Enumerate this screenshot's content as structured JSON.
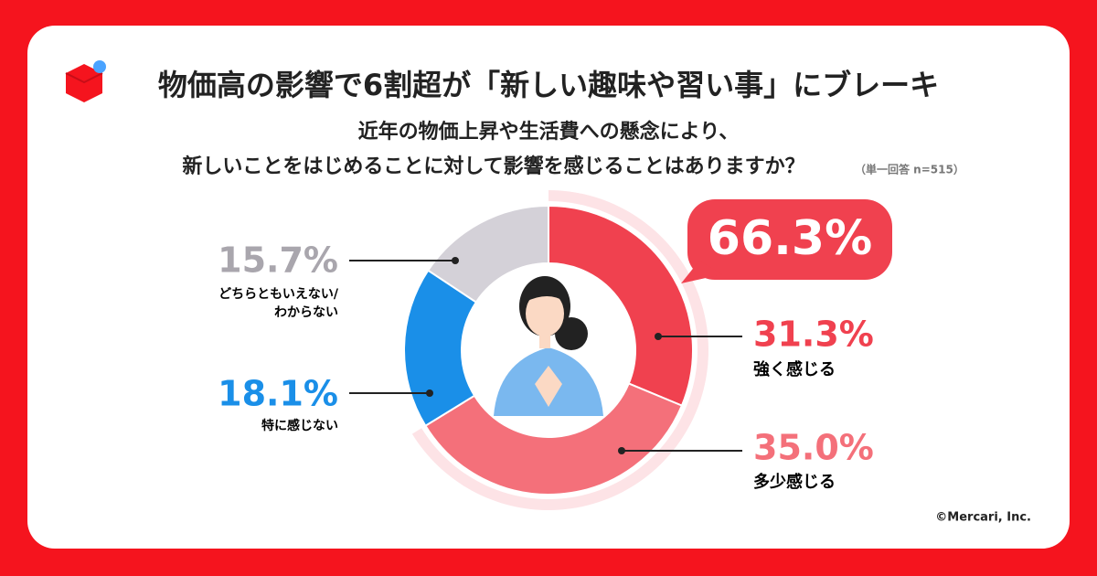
{
  "chart_data": {
    "type": "donut",
    "title": "物価高の影響で6割超が「新しい趣味や習い事」にブレーキ",
    "subtitle": [
      "近年の物価上昇や生活費への懸念により、",
      "新しいことをはじめることに対して影響を感じることはありますか？"
    ],
    "note": "（単一回答 n=515）",
    "categories": [
      "強く感じる",
      "多少感じる",
      "特に感じない",
      "どちらともいえない/\nわからない"
    ],
    "values": [
      31.3,
      35.0,
      18.1,
      15.7
    ],
    "value_labels": [
      "31.3%",
      "35.0%",
      "18.1%",
      "15.7%"
    ],
    "colors": [
      "#f0414f",
      "#f4707a",
      "#1a8fe8",
      "#d4d1d8"
    ],
    "highlight": {
      "value": 66.3,
      "label": "66.3%",
      "color": "#fde3e6"
    },
    "copyright": "©Mercari, Inc."
  }
}
